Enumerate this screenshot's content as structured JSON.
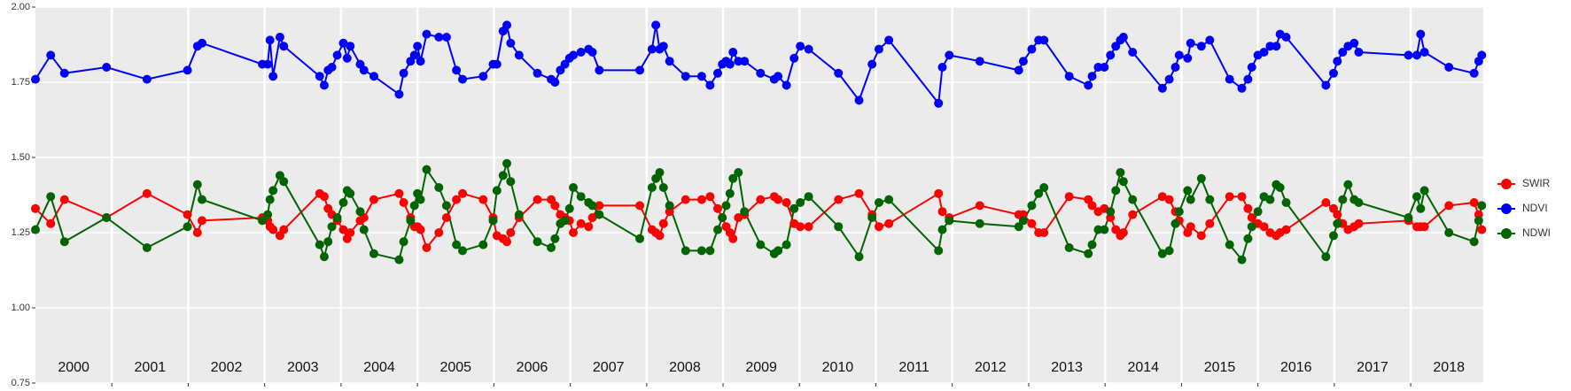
{
  "chart_data": {
    "type": "line",
    "x": [
      2000.0,
      2000.2,
      2000.38,
      2000.93,
      2001.46,
      2001.99,
      2002.12,
      2002.18,
      2002.97,
      2003.04,
      2003.07,
      2003.11,
      2003.2,
      2003.25,
      2003.72,
      2003.78,
      2003.83,
      2003.88,
      2003.95,
      2004.03,
      2004.08,
      2004.12,
      2004.25,
      2004.3,
      2004.43,
      2004.76,
      2004.82,
      2004.91,
      2004.96,
      2005.0,
      2005.04,
      2005.12,
      2005.28,
      2005.38,
      2005.51,
      2005.59,
      2005.86,
      2005.99,
      2006.04,
      2006.12,
      2006.17,
      2006.22,
      2006.33,
      2006.57,
      2006.75,
      2006.8,
      2006.87,
      2006.93,
      2006.99,
      2007.04,
      2007.14,
      2007.24,
      2007.29,
      2007.38,
      2007.91,
      2008.07,
      2008.12,
      2008.17,
      2008.22,
      2008.3,
      2008.51,
      2008.72,
      2008.83,
      2008.93,
      2008.99,
      2009.04,
      2009.09,
      2009.13,
      2009.2,
      2009.28,
      2009.49,
      2009.67,
      2009.72,
      2009.83,
      2009.93,
      2010.01,
      2010.12,
      2010.51,
      2010.78,
      2010.95,
      2011.04,
      2011.17,
      2011.82,
      2011.87,
      2011.96,
      2012.36,
      2012.87,
      2012.93,
      2013.04,
      2013.13,
      2013.2,
      2013.53,
      2013.78,
      2013.83,
      2013.91,
      2013.99,
      2014.07,
      2014.14,
      2014.2,
      2014.24,
      2014.36,
      2014.75,
      2014.84,
      2014.92,
      2014.97,
      2015.08,
      2015.12,
      2015.26,
      2015.37,
      2015.63,
      2015.79,
      2015.87,
      2015.92,
      2016.0,
      2016.08,
      2016.16,
      2016.24,
      2016.29,
      2016.37,
      2016.89,
      2016.99,
      2017.04,
      2017.11,
      2017.18,
      2017.26,
      2017.32,
      2017.97,
      2018.08,
      2018.13,
      2018.18,
      2018.5,
      2018.83,
      2018.89,
      2018.93
    ],
    "series": [
      {
        "name": "SWIR",
        "color": "#ff0000",
        "values": [
          1.33,
          1.28,
          1.36,
          1.3,
          1.38,
          1.31,
          1.25,
          1.29,
          1.3,
          1.29,
          1.27,
          1.26,
          1.24,
          1.26,
          1.38,
          1.37,
          1.33,
          1.31,
          1.29,
          1.26,
          1.23,
          1.25,
          1.29,
          1.3,
          1.36,
          1.38,
          1.35,
          1.3,
          1.27,
          1.27,
          1.26,
          1.2,
          1.25,
          1.3,
          1.36,
          1.38,
          1.36,
          1.3,
          1.24,
          1.23,
          1.22,
          1.25,
          1.3,
          1.36,
          1.36,
          1.34,
          1.31,
          1.3,
          1.29,
          1.25,
          1.28,
          1.27,
          1.3,
          1.34,
          1.34,
          1.26,
          1.25,
          1.24,
          1.28,
          1.32,
          1.36,
          1.36,
          1.37,
          1.33,
          1.3,
          1.27,
          1.25,
          1.23,
          1.3,
          1.31,
          1.36,
          1.37,
          1.36,
          1.35,
          1.28,
          1.27,
          1.27,
          1.36,
          1.38,
          1.31,
          1.27,
          1.28,
          1.38,
          1.32,
          1.3,
          1.34,
          1.31,
          1.31,
          1.28,
          1.25,
          1.25,
          1.37,
          1.36,
          1.34,
          1.32,
          1.33,
          1.3,
          1.26,
          1.24,
          1.25,
          1.31,
          1.37,
          1.36,
          1.32,
          1.29,
          1.25,
          1.27,
          1.24,
          1.28,
          1.37,
          1.37,
          1.33,
          1.3,
          1.28,
          1.27,
          1.25,
          1.24,
          1.25,
          1.26,
          1.35,
          1.33,
          1.31,
          1.28,
          1.26,
          1.27,
          1.28,
          1.29,
          1.27,
          1.27,
          1.27,
          1.34,
          1.35,
          1.31,
          1.26
        ]
      },
      {
        "name": "NDVI",
        "color": "#0000ff",
        "values": [
          1.76,
          1.84,
          1.78,
          1.8,
          1.76,
          1.79,
          1.87,
          1.88,
          1.81,
          1.81,
          1.89,
          1.77,
          1.9,
          1.87,
          1.77,
          1.74,
          1.79,
          1.8,
          1.84,
          1.88,
          1.83,
          1.87,
          1.81,
          1.79,
          1.77,
          1.71,
          1.78,
          1.82,
          1.84,
          1.87,
          1.82,
          1.91,
          1.9,
          1.9,
          1.79,
          1.76,
          1.77,
          1.81,
          1.81,
          1.92,
          1.94,
          1.88,
          1.84,
          1.78,
          1.76,
          1.75,
          1.79,
          1.81,
          1.83,
          1.84,
          1.85,
          1.86,
          1.85,
          1.79,
          1.79,
          1.86,
          1.94,
          1.86,
          1.87,
          1.82,
          1.77,
          1.77,
          1.74,
          1.78,
          1.81,
          1.82,
          1.81,
          1.85,
          1.82,
          1.82,
          1.78,
          1.76,
          1.77,
          1.74,
          1.83,
          1.87,
          1.86,
          1.78,
          1.69,
          1.81,
          1.86,
          1.89,
          1.68,
          1.8,
          1.84,
          1.82,
          1.79,
          1.82,
          1.86,
          1.89,
          1.89,
          1.77,
          1.74,
          1.77,
          1.8,
          1.8,
          1.84,
          1.87,
          1.89,
          1.9,
          1.85,
          1.73,
          1.76,
          1.8,
          1.84,
          1.83,
          1.88,
          1.87,
          1.89,
          1.76,
          1.73,
          1.76,
          1.8,
          1.84,
          1.85,
          1.87,
          1.87,
          1.91,
          1.9,
          1.74,
          1.78,
          1.82,
          1.85,
          1.87,
          1.88,
          1.85,
          1.84,
          1.84,
          1.91,
          1.85,
          1.8,
          1.78,
          1.82,
          1.84
        ]
      },
      {
        "name": "NDWI",
        "color": "#006400",
        "values": [
          1.26,
          1.37,
          1.22,
          1.3,
          1.2,
          1.27,
          1.41,
          1.36,
          1.29,
          1.31,
          1.36,
          1.39,
          1.44,
          1.42,
          1.21,
          1.17,
          1.22,
          1.27,
          1.3,
          1.35,
          1.39,
          1.38,
          1.32,
          1.26,
          1.18,
          1.16,
          1.22,
          1.29,
          1.34,
          1.38,
          1.36,
          1.46,
          1.4,
          1.34,
          1.21,
          1.19,
          1.21,
          1.29,
          1.39,
          1.44,
          1.48,
          1.42,
          1.31,
          1.22,
          1.2,
          1.23,
          1.28,
          1.29,
          1.33,
          1.4,
          1.37,
          1.35,
          1.34,
          1.31,
          1.23,
          1.4,
          1.43,
          1.45,
          1.4,
          1.34,
          1.19,
          1.19,
          1.19,
          1.26,
          1.3,
          1.34,
          1.38,
          1.43,
          1.45,
          1.32,
          1.21,
          1.18,
          1.19,
          1.21,
          1.33,
          1.35,
          1.37,
          1.27,
          1.17,
          1.3,
          1.35,
          1.36,
          1.19,
          1.26,
          1.29,
          1.28,
          1.27,
          1.29,
          1.34,
          1.38,
          1.4,
          1.2,
          1.18,
          1.21,
          1.26,
          1.26,
          1.32,
          1.39,
          1.45,
          1.42,
          1.36,
          1.18,
          1.19,
          1.28,
          1.32,
          1.39,
          1.36,
          1.43,
          1.36,
          1.21,
          1.16,
          1.23,
          1.27,
          1.32,
          1.37,
          1.36,
          1.41,
          1.4,
          1.35,
          1.17,
          1.24,
          1.28,
          1.36,
          1.41,
          1.36,
          1.35,
          1.3,
          1.37,
          1.33,
          1.39,
          1.25,
          1.22,
          1.29,
          1.34
        ]
      }
    ],
    "xlim": [
      2000.0,
      2018.95
    ],
    "xticks": [
      2001,
      2002,
      2003,
      2004,
      2005,
      2006,
      2007,
      2008,
      2009,
      2010,
      2011,
      2012,
      2013,
      2014,
      2015,
      2016,
      2017,
      2018
    ],
    "ylim": [
      0.75,
      2.0
    ],
    "yticks": [
      0.75,
      {
        "value": 1.0,
        "label": "1.00"
      },
      1.25,
      {
        "value": 1.5,
        "label": "1.50"
      },
      1.75,
      {
        "value": 2.0,
        "label": "2.00"
      }
    ],
    "annotations": [
      {
        "text": "2000",
        "x": 2000.5,
        "y": 0.8
      },
      {
        "text": "2001",
        "x": 2001.5,
        "y": 0.8
      },
      {
        "text": "2002",
        "x": 2002.5,
        "y": 0.8
      },
      {
        "text": "2003",
        "x": 2003.5,
        "y": 0.8
      },
      {
        "text": "2004",
        "x": 2004.5,
        "y": 0.8
      },
      {
        "text": "2005",
        "x": 2005.5,
        "y": 0.8
      },
      {
        "text": "2006",
        "x": 2006.5,
        "y": 0.8
      },
      {
        "text": "2007",
        "x": 2007.5,
        "y": 0.8
      },
      {
        "text": "2008",
        "x": 2008.5,
        "y": 0.8
      },
      {
        "text": "2009",
        "x": 2009.5,
        "y": 0.8
      },
      {
        "text": "2010",
        "x": 2010.5,
        "y": 0.8
      },
      {
        "text": "2011",
        "x": 2011.5,
        "y": 0.8
      },
      {
        "text": "2012",
        "x": 2012.5,
        "y": 0.8
      },
      {
        "text": "2013",
        "x": 2013.5,
        "y": 0.8
      },
      {
        "text": "2014",
        "x": 2014.5,
        "y": 0.8
      },
      {
        "text": "2015",
        "x": 2015.5,
        "y": 0.8
      },
      {
        "text": "2016",
        "x": 2016.5,
        "y": 0.8
      },
      {
        "text": "2017",
        "x": 2017.5,
        "y": 0.8
      },
      {
        "text": "2018",
        "x": 2018.5,
        "y": 0.8
      }
    ],
    "grid": true,
    "legend": "right"
  }
}
